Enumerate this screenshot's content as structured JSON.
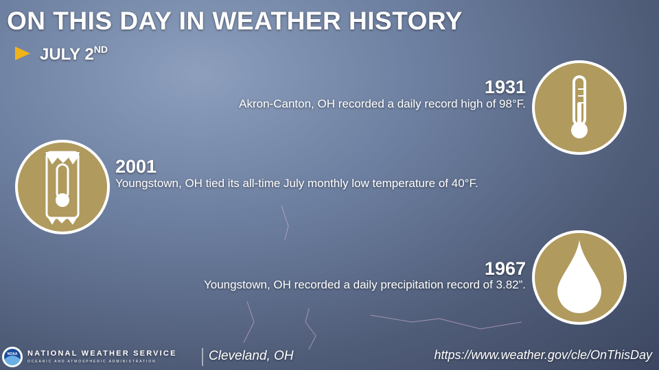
{
  "header": {
    "title": "ON THIS DAY IN WEATHER HISTORY",
    "date": {
      "main": "JULY 2",
      "suffix": "ND"
    }
  },
  "events": [
    {
      "year": "1931",
      "text": "Akron-Canton, OH recorded a daily record high of 98°F."
    },
    {
      "year": "2001",
      "text": "Youngstown, OH tied its all-time July monthly low temperature of 40°F."
    },
    {
      "year": "1967",
      "text": "Youngstown, OH recorded a daily precipitation record of 3.82”."
    }
  ],
  "footer": {
    "logo": "NOAA",
    "agency": "NATIONAL WEATHER SERVICE",
    "agency_sub": "OCEANIC AND ATMOSPHERIC ADMINISTRATION",
    "office": "Cleveland, OH",
    "url": "https://www.weather.gov/cle/OnThisDay"
  }
}
